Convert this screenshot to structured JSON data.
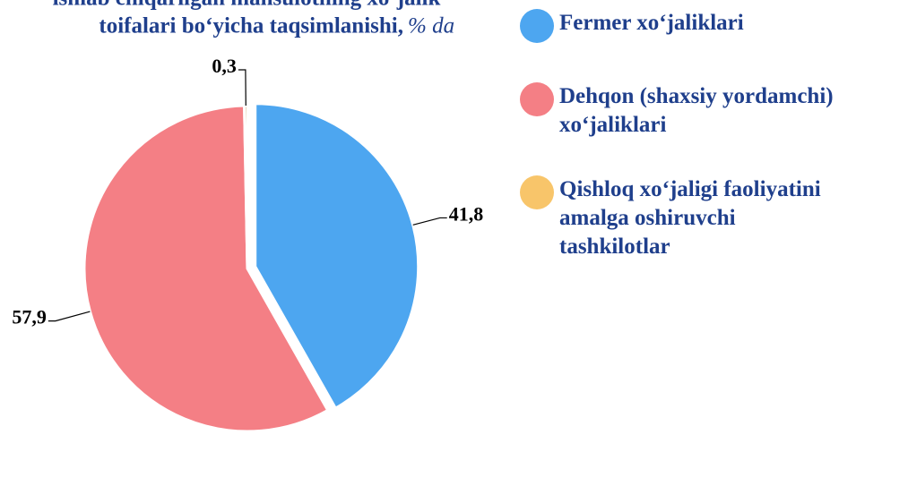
{
  "chart_data": {
    "type": "pie",
    "title": [
      "ishlab chiqarilgan mahsulotning xo‘jalik",
      "toifalari bo‘yicha taqsimlanishi,"
    ],
    "unit": "% da",
    "categories": [
      "Fermer xo‘jaliklari",
      "Dehqon (shaxsiy yordamchi) xo‘jaliklari",
      "Qishloq xo‘jaligi faoliyatini amalga oshiruvchi tashkilotlar"
    ],
    "values": [
      41.8,
      57.9,
      0.3
    ],
    "value_labels": [
      "41,8",
      "57,9",
      "0,3"
    ],
    "colors": [
      "#4da6f0",
      "#f47f85",
      "#f8c56a"
    ]
  }
}
